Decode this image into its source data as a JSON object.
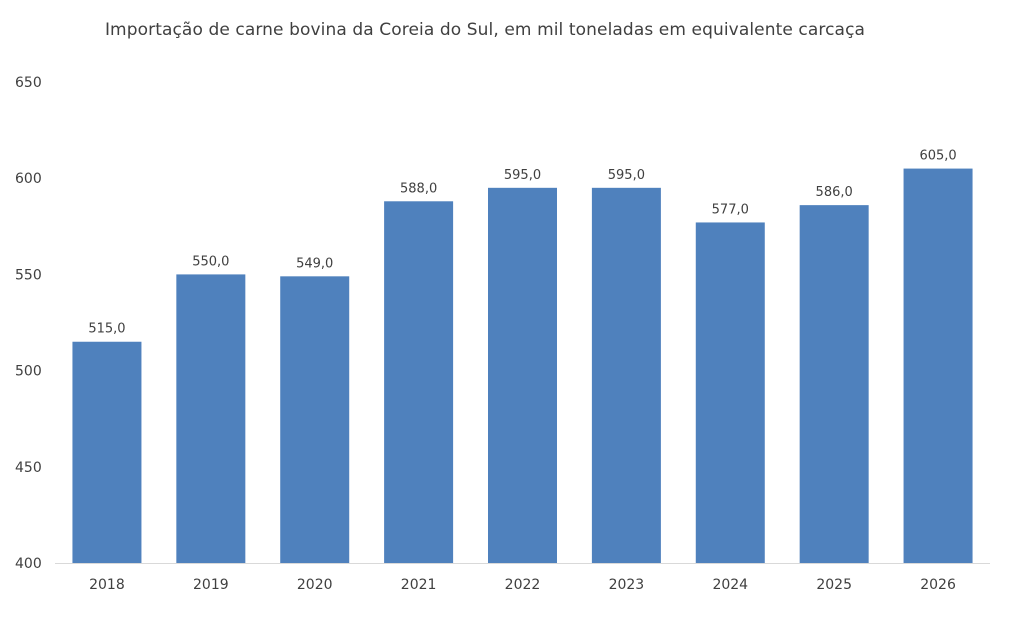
{
  "chart_data": {
    "type": "bar",
    "title": "Importação de carne bovina da Coreia do Sul, em mil toneladas em equivalente carcaça",
    "xlabel": "",
    "ylabel": "",
    "categories": [
      "2018",
      "2019",
      "2020",
      "2021",
      "2022",
      "2023",
      "2024",
      "2025",
      "2026"
    ],
    "values": [
      515,
      550,
      549,
      588,
      595,
      595,
      577,
      586,
      605
    ],
    "value_labels": [
      "515,0",
      "550,0",
      "549,0",
      "588,0",
      "595,0",
      "595,0",
      "577,0",
      "586,0",
      "605,0"
    ],
    "ylim": [
      400,
      650
    ],
    "yticks": [
      400,
      450,
      500,
      550,
      600,
      650
    ],
    "ytick_labels": [
      "400",
      "450",
      "500",
      "550",
      "600",
      "650"
    ],
    "grid": false,
    "legend": "none",
    "bar_color": "#4f81bd",
    "axis_color": "#d9d9d9",
    "text_color": "#404040"
  }
}
